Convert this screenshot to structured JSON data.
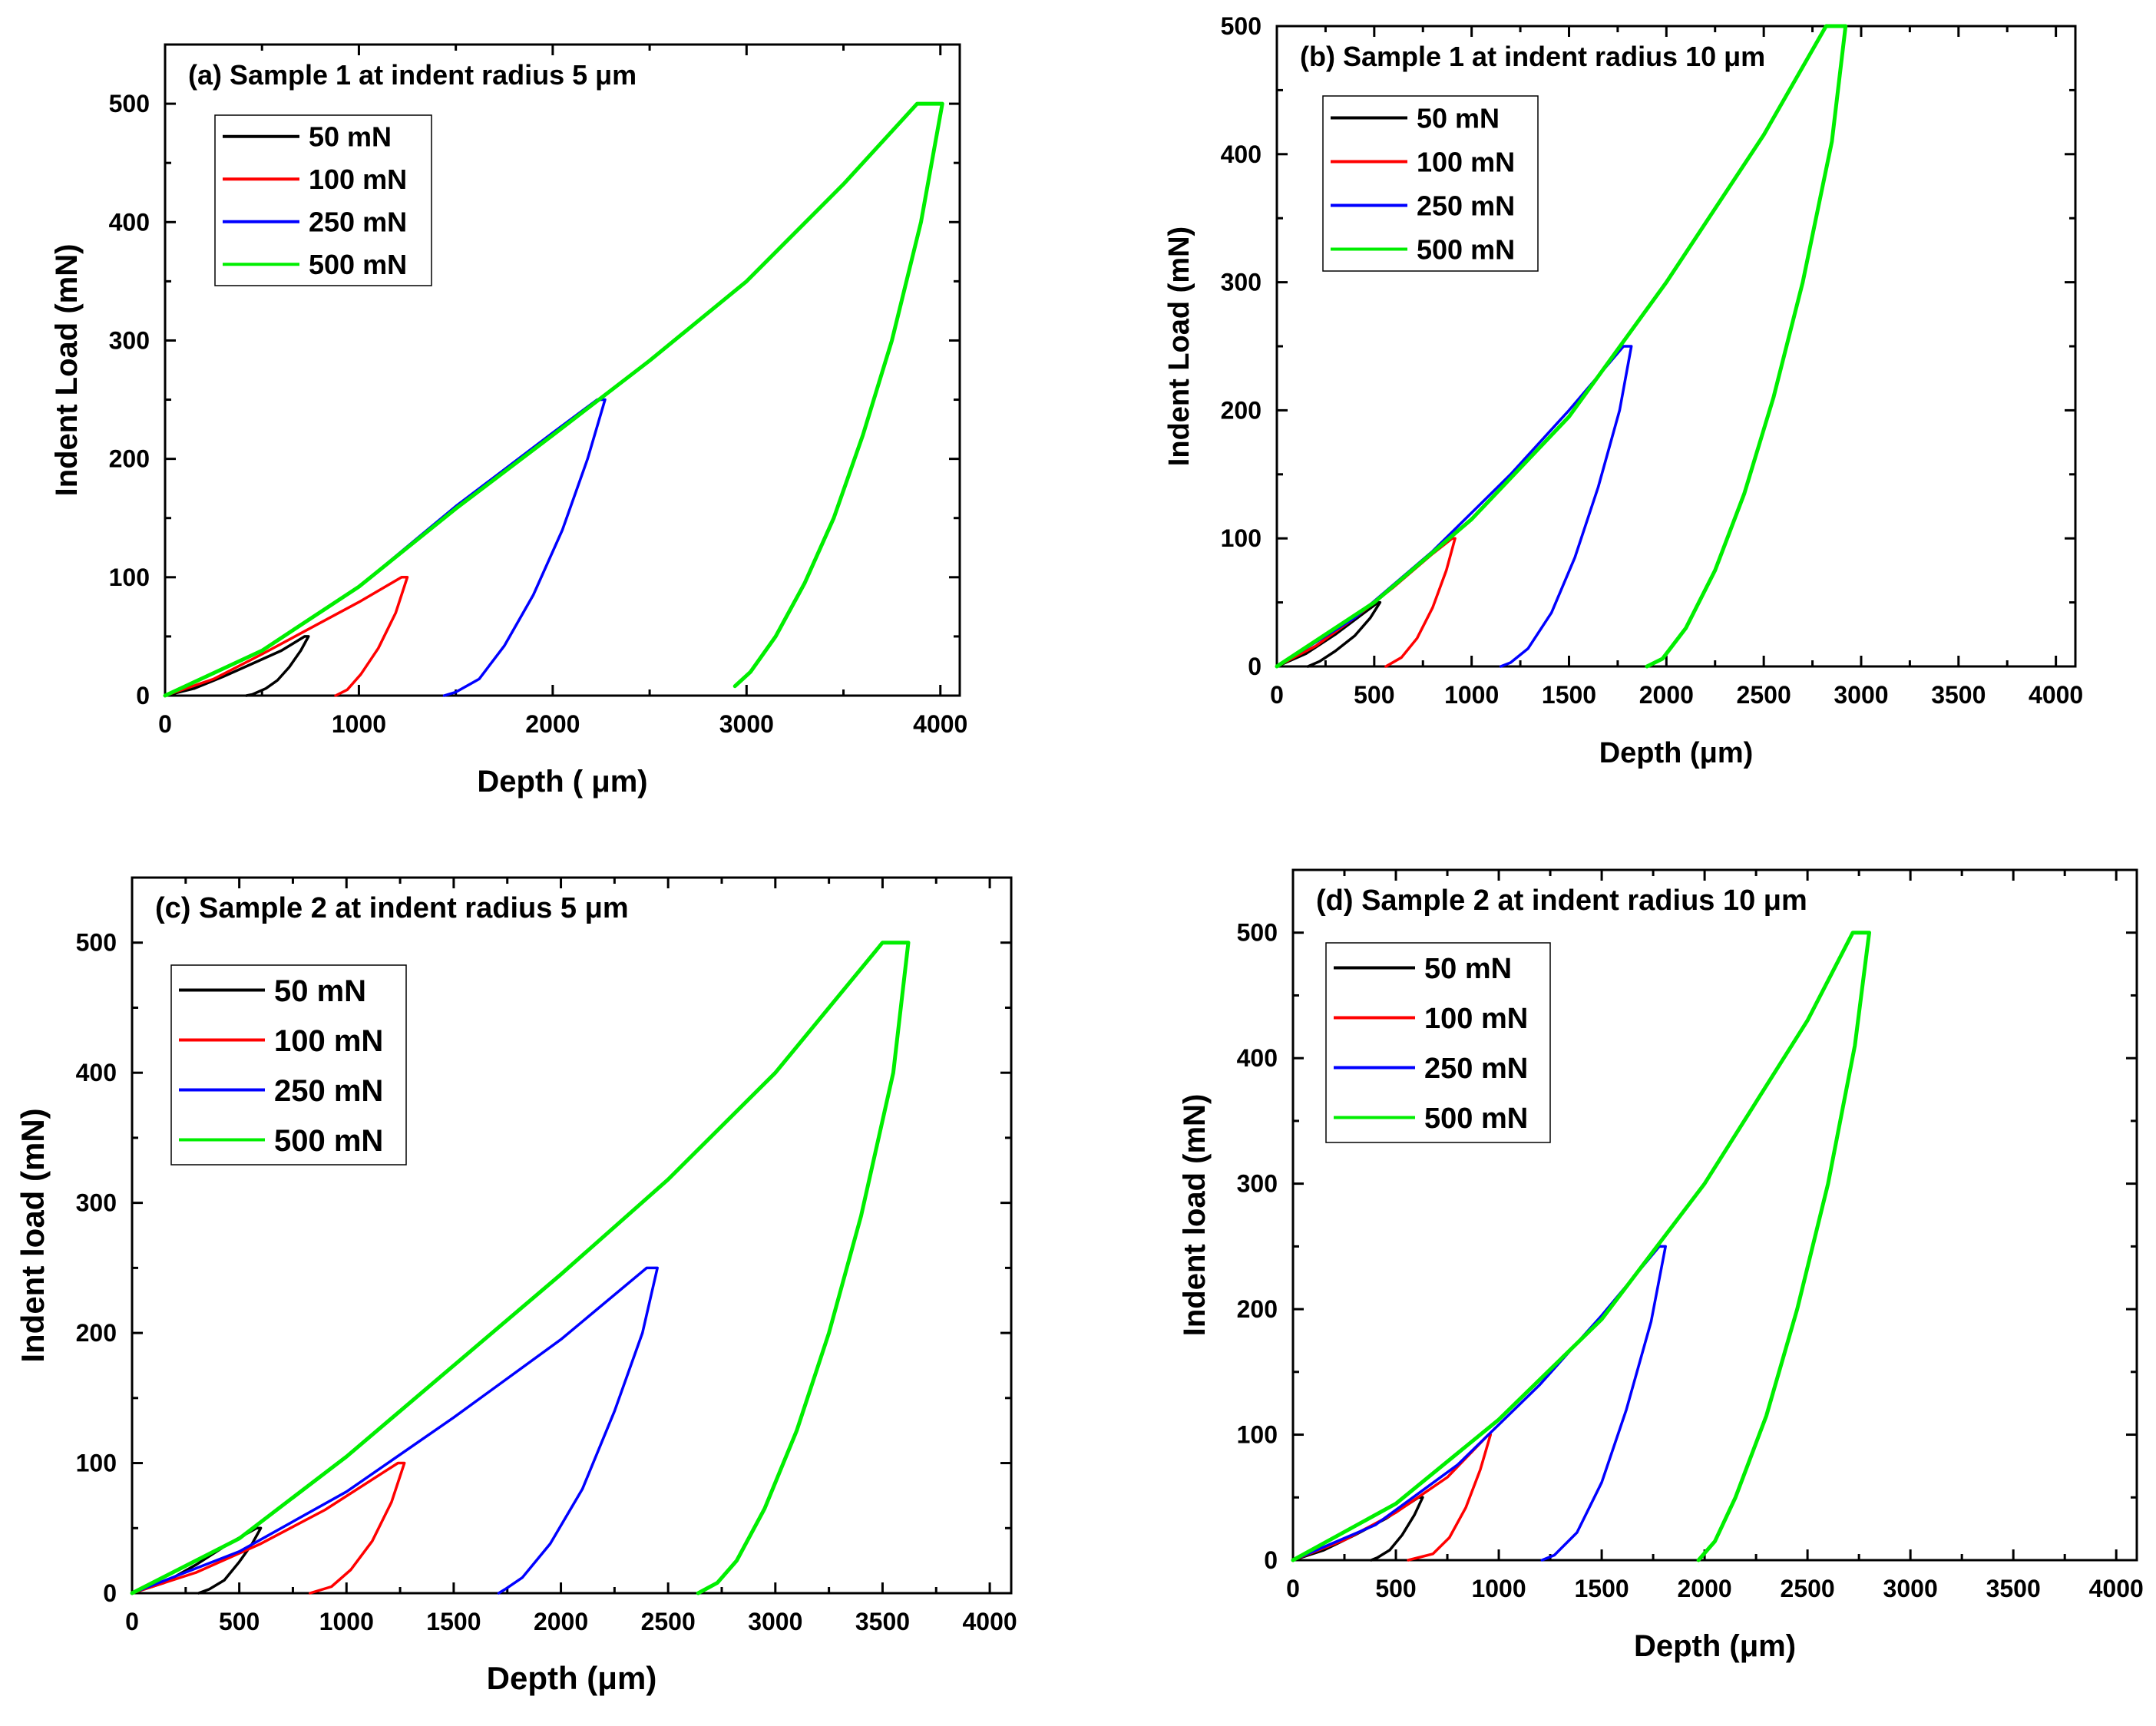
{
  "chart_data": [
    {
      "type": "line",
      "title": "(a) Sample 1 at indent radius 5 μm",
      "xlabel": "Depth ( μm)",
      "ylabel": "Indent Load (mN)",
      "xlim": [
        0,
        4100
      ],
      "ylim": [
        0,
        550
      ],
      "xticks": [
        0,
        1000,
        2000,
        3000,
        4000
      ],
      "yticks": [
        0,
        100,
        200,
        300,
        400,
        500
      ],
      "legend": "top-left",
      "series": [
        {
          "name": "50 mN",
          "color": "#000000",
          "loading": {
            "x": [
              0,
              150,
              300,
              450,
              600,
              720
            ],
            "y": [
              0,
              6,
              16,
              27,
              38,
              50
            ]
          },
          "hold": {
            "x": [
              720,
              740
            ],
            "y": [
              50,
              50
            ]
          },
          "unloading": {
            "x": [
              740,
              700,
              640,
              580,
              520,
              450,
              420
            ],
            "y": [
              50,
              38,
              24,
              13,
              6,
              1,
              0
            ]
          }
        },
        {
          "name": "100 mN",
          "color": "#ff0000",
          "loading": {
            "x": [
              0,
              250,
              500,
              750,
              1000,
              1220
            ],
            "y": [
              0,
              14,
              35,
              57,
              79,
              100
            ]
          },
          "hold": {
            "x": [
              1220,
              1250
            ],
            "y": [
              100,
              100
            ]
          },
          "unloading": {
            "x": [
              1250,
              1190,
              1100,
              1010,
              940,
              880
            ],
            "y": [
              100,
              70,
              40,
              18,
              5,
              0
            ]
          }
        },
        {
          "name": "250 mN",
          "color": "#0000ff",
          "loading": {
            "x": [
              0,
              500,
              1000,
              1500,
              2000,
              2230
            ],
            "y": [
              0,
              38,
              92,
              160,
              222,
              250
            ]
          },
          "hold": {
            "x": [
              2230,
              2270
            ],
            "y": [
              250,
              250
            ]
          },
          "unloading": {
            "x": [
              2270,
              2180,
              2050,
              1900,
              1750,
              1620,
              1500,
              1440
            ],
            "y": [
              250,
              200,
              140,
              85,
              42,
              14,
              3,
              0
            ]
          }
        },
        {
          "name": "500 mN",
          "color": "#00ee00",
          "loading": {
            "x": [
              0,
              500,
              1000,
              1500,
              2000,
              2500,
              3000,
              3500,
              3880
            ],
            "y": [
              0,
              38,
              92,
              158,
              220,
              283,
              350,
              432,
              500
            ]
          },
          "hold": {
            "x": [
              3880,
              4010
            ],
            "y": [
              500,
              500
            ]
          },
          "unloading": {
            "x": [
              4010,
              3900,
              3750,
              3600,
              3450,
              3300,
              3150,
              3020,
              2940
            ],
            "y": [
              500,
              400,
              300,
              220,
              150,
              95,
              50,
              20,
              8
            ]
          }
        }
      ]
    },
    {
      "type": "line",
      "title": "(b) Sample 1 at indent radius 10 μm",
      "xlabel": "Depth (μm)",
      "ylabel": "Indent Load (mN)",
      "xlim": [
        0,
        4100
      ],
      "ylim": [
        0,
        500
      ],
      "xticks": [
        0,
        500,
        1000,
        1500,
        2000,
        2500,
        3000,
        3500,
        4000
      ],
      "yticks": [
        0,
        100,
        200,
        300,
        400,
        500
      ],
      "legend": "top-left",
      "series": [
        {
          "name": "50 mN",
          "color": "#000000",
          "loading": {
            "x": [
              0,
              150,
              300,
              450,
              520
            ],
            "y": [
              0,
              10,
              25,
              42,
              50
            ]
          },
          "hold": {
            "x": [
              520,
              530
            ],
            "y": [
              50,
              50
            ]
          },
          "unloading": {
            "x": [
              530,
              480,
              400,
              300,
              220,
              160
            ],
            "y": [
              50,
              38,
              24,
              12,
              4,
              0
            ]
          }
        },
        {
          "name": "100 mN",
          "color": "#ff0000",
          "loading": {
            "x": [
              0,
              200,
              400,
              600,
              800,
              900
            ],
            "y": [
              0,
              16,
              38,
              62,
              88,
              100
            ]
          },
          "hold": {
            "x": [
              900,
              915
            ],
            "y": [
              100,
              100
            ]
          },
          "unloading": {
            "x": [
              915,
              870,
              800,
              720,
              640,
              560
            ],
            "y": [
              100,
              75,
              46,
              22,
              7,
              0
            ]
          }
        },
        {
          "name": "250 mN",
          "color": "#0000ff",
          "loading": {
            "x": [
              0,
              400,
              800,
              1200,
              1500,
              1780
            ],
            "y": [
              0,
              38,
              90,
              150,
              200,
              250
            ]
          },
          "hold": {
            "x": [
              1780,
              1820
            ],
            "y": [
              250,
              250
            ]
          },
          "unloading": {
            "x": [
              1820,
              1760,
              1650,
              1530,
              1410,
              1290,
              1200,
              1150
            ],
            "y": [
              250,
              200,
              140,
              85,
              42,
              14,
              3,
              0
            ]
          }
        },
        {
          "name": "500 mN",
          "color": "#00ee00",
          "loading": {
            "x": [
              0,
              500,
              1000,
              1500,
              2000,
              2500,
              2820
            ],
            "y": [
              0,
              50,
              115,
              195,
              300,
              415,
              500
            ]
          },
          "hold": {
            "x": [
              2820,
              2920
            ],
            "y": [
              500,
              500
            ]
          },
          "unloading": {
            "x": [
              2920,
              2850,
              2700,
              2550,
              2400,
              2250,
              2100,
              1980,
              1900
            ],
            "y": [
              500,
              410,
              300,
              210,
              135,
              75,
              30,
              6,
              0
            ]
          }
        }
      ]
    },
    {
      "type": "line",
      "title": "(c) Sample 2 at indent radius 5 μm",
      "xlabel": "Depth (μm)",
      "ylabel": "Indent load (mN)",
      "xlim": [
        0,
        4100
      ],
      "ylim": [
        0,
        550
      ],
      "xticks": [
        0,
        500,
        1000,
        1500,
        2000,
        2500,
        3000,
        3500,
        4000
      ],
      "yticks": [
        0,
        100,
        200,
        300,
        400,
        500
      ],
      "legend": "top-left",
      "series": [
        {
          "name": "50 mN",
          "color": "#000000",
          "loading": {
            "x": [
              0,
              150,
              300,
              450,
              580
            ],
            "y": [
              0,
              8,
              22,
              38,
              50
            ]
          },
          "hold": {
            "x": [
              580,
              600
            ],
            "y": [
              50,
              50
            ]
          },
          "unloading": {
            "x": [
              600,
              560,
              500,
              430,
              360,
              310
            ],
            "y": [
              50,
              38,
              24,
              10,
              3,
              0
            ]
          }
        },
        {
          "name": "100 mN",
          "color": "#ff0000",
          "loading": {
            "x": [
              0,
              300,
              600,
              900,
              1240
            ],
            "y": [
              0,
              16,
              38,
              64,
              100
            ]
          },
          "hold": {
            "x": [
              1240,
              1270
            ],
            "y": [
              100,
              100
            ]
          },
          "unloading": {
            "x": [
              1270,
              1210,
              1120,
              1020,
              930,
              830
            ],
            "y": [
              100,
              70,
              40,
              18,
              5,
              0
            ]
          }
        },
        {
          "name": "250 mN",
          "color": "#0000ff",
          "loading": {
            "x": [
              0,
              500,
              1000,
              1500,
              2000,
              2400
            ],
            "y": [
              0,
              32,
              78,
              135,
              195,
              250
            ]
          },
          "hold": {
            "x": [
              2400,
              2450
            ],
            "y": [
              250,
              250
            ]
          },
          "unloading": {
            "x": [
              2450,
              2380,
              2250,
              2100,
              1950,
              1820,
              1740,
              1710
            ],
            "y": [
              250,
              200,
              140,
              80,
              38,
              12,
              3,
              0
            ]
          }
        },
        {
          "name": "500 mN",
          "color": "#00ee00",
          "loading": {
            "x": [
              0,
              500,
              1000,
              1500,
              2000,
              2500,
              3000,
              3500
            ],
            "y": [
              0,
              42,
              105,
              175,
              245,
              318,
              400,
              500
            ]
          },
          "hold": {
            "x": [
              3500,
              3620
            ],
            "y": [
              500,
              500
            ]
          },
          "unloading": {
            "x": [
              3620,
              3550,
              3400,
              3250,
              3100,
              2950,
              2820,
              2730,
              2640
            ],
            "y": [
              500,
              400,
              290,
              200,
              125,
              65,
              25,
              8,
              0
            ]
          }
        }
      ]
    },
    {
      "type": "line",
      "title": "(d) Sample 2 at indent radius 10 μm",
      "xlabel": "Depth (μm)",
      "ylabel": "Indent load (mN)",
      "xlim": [
        0,
        4100
      ],
      "ylim": [
        0,
        550
      ],
      "xticks": [
        0,
        500,
        1000,
        1500,
        2000,
        2500,
        3000,
        3500,
        4000
      ],
      "yticks": [
        0,
        100,
        200,
        300,
        400,
        500
      ],
      "legend": "top-left",
      "series": [
        {
          "name": "50 mN",
          "color": "#000000",
          "loading": {
            "x": [
              0,
              150,
              300,
              450,
              610
            ],
            "y": [
              0,
              8,
              20,
              33,
              50
            ]
          },
          "hold": {
            "x": [
              610,
              630
            ],
            "y": [
              50,
              50
            ]
          },
          "unloading": {
            "x": [
              630,
              590,
              530,
              470,
              410,
              380
            ],
            "y": [
              50,
              36,
              20,
              8,
              2,
              0
            ]
          }
        },
        {
          "name": "100 mN",
          "color": "#ff0000",
          "loading": {
            "x": [
              0,
              250,
              500,
              750,
              950
            ],
            "y": [
              0,
              16,
              38,
              66,
              100
            ]
          },
          "hold": {
            "x": [
              950,
              960
            ],
            "y": [
              100,
              100
            ]
          },
          "unloading": {
            "x": [
              960,
              910,
              840,
              760,
              680,
              560
            ],
            "y": [
              100,
              72,
              42,
              18,
              5,
              0
            ]
          }
        },
        {
          "name": "250 mN",
          "color": "#0000ff",
          "loading": {
            "x": [
              0,
              400,
              800,
              1200,
              1500,
              1780
            ],
            "y": [
              0,
              28,
              76,
              140,
              195,
              250
            ]
          },
          "hold": {
            "x": [
              1780,
              1810
            ],
            "y": [
              250,
              250
            ]
          },
          "unloading": {
            "x": [
              1810,
              1740,
              1620,
              1500,
              1380,
              1270,
              1210
            ],
            "y": [
              250,
              190,
              120,
              62,
              22,
              4,
              0
            ]
          }
        },
        {
          "name": "500 mN",
          "color": "#00ee00",
          "loading": {
            "x": [
              0,
              500,
              1000,
              1500,
              2000,
              2500,
              2720
            ],
            "y": [
              0,
              45,
              112,
              192,
              300,
              430,
              500
            ]
          },
          "hold": {
            "x": [
              2720,
              2800
            ],
            "y": [
              500,
              500
            ]
          },
          "unloading": {
            "x": [
              2800,
              2730,
              2600,
              2450,
              2300,
              2150,
              2050,
              1970
            ],
            "y": [
              500,
              410,
              300,
              200,
              115,
              50,
              15,
              0
            ]
          }
        }
      ]
    }
  ]
}
